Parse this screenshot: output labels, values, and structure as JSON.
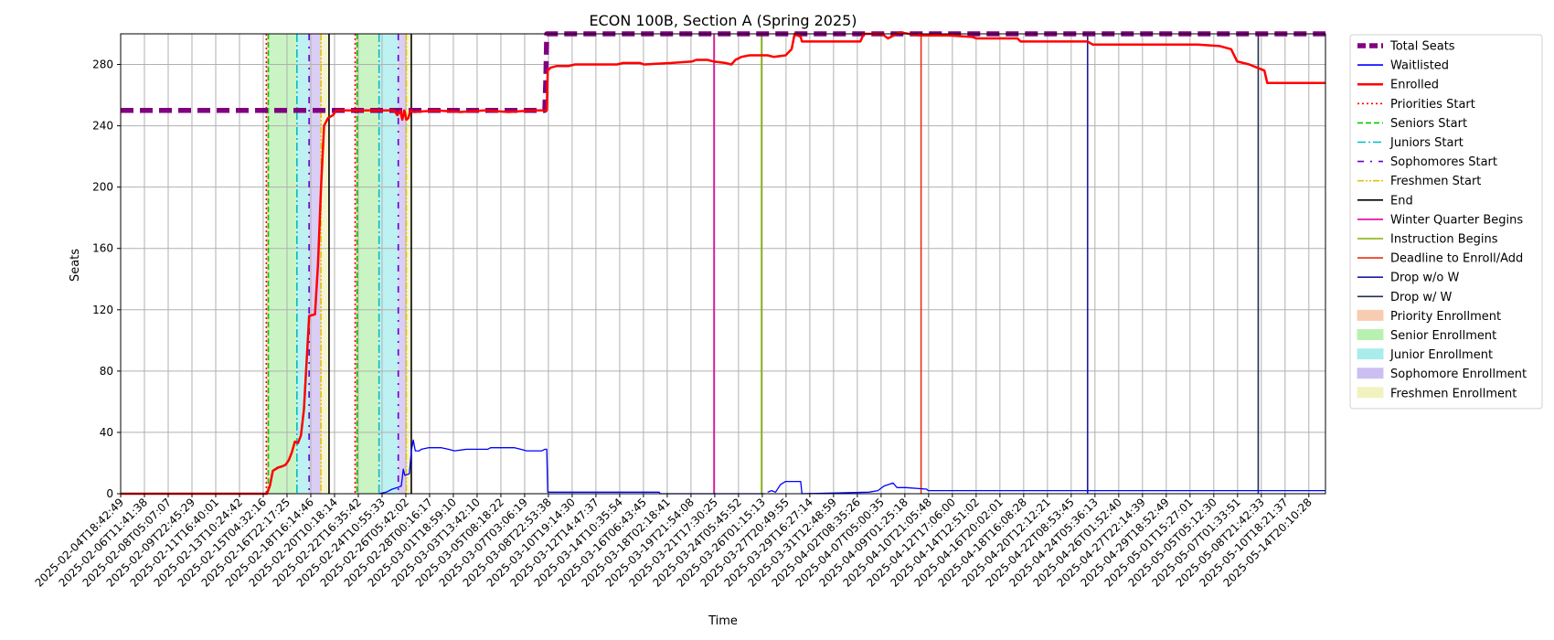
{
  "chart_data": {
    "type": "line",
    "title": "ECON 100B, Section A (Spring 2025)",
    "xlabel": "Time",
    "ylabel": "Seats",
    "ylim": [
      0,
      300
    ],
    "yticks": [
      0,
      40,
      80,
      120,
      160,
      200,
      240,
      280
    ],
    "grid": true,
    "legend_position": "outside-right",
    "x_range": [
      "2025-02-04T18:42:49",
      "2025-05-15T20:00:00"
    ],
    "x_tick_labels": [
      "2025-02-04T18:42:49",
      "2025-02-06T11:41:38",
      "2025-02-08T05:07:07",
      "2025-02-09T22:45:29",
      "2025-02-11T16:40:01",
      "2025-02-13T10:24:42",
      "2025-02-15T04:32:16",
      "2025-02-16T22:17:25",
      "2025-02-18T16:14:46",
      "2025-02-20T10:18:14",
      "2025-02-22T16:35:42",
      "2025-02-24T10:55:33",
      "2025-02-26T05:42:02",
      "2025-02-28T00:16:17",
      "2025-03-01T18:59:10",
      "2025-03-03T13:42:10",
      "2025-03-05T08:18:22",
      "2025-03-07T03:06:19",
      "2025-03-08T22:53:38",
      "2025-03-10T19:14:30",
      "2025-03-12T14:47:37",
      "2025-03-14T10:35:54",
      "2025-03-16T06:43:45",
      "2025-03-18T02:18:41",
      "2025-03-19T21:54:08",
      "2025-03-21T17:30:25",
      "2025-03-24T05:45:52",
      "2025-03-26T01:15:13",
      "2025-03-27T20:49:55",
      "2025-03-29T16:27:14",
      "2025-03-31T12:48:59",
      "2025-04-02T08:35:26",
      "2025-04-07T05:00:35",
      "2025-04-09T01:25:18",
      "2025-04-10T21:05:48",
      "2025-04-12T17:06:00",
      "2025-04-14T12:51:02",
      "2025-04-16T20:02:01",
      "2025-04-18T16:08:28",
      "2025-04-20T12:12:21",
      "2025-04-22T08:53:45",
      "2025-04-24T05:36:13",
      "2025-04-26T01:52:40",
      "2025-04-27T22:14:39",
      "2025-04-29T18:52:49",
      "2025-05-01T15:27:01",
      "2025-05-05T05:12:30",
      "2025-05-07T01:33:51",
      "2025-05-08T21:42:33",
      "2025-05-10T18:21:37",
      "2025-05-14T20:10:28"
    ],
    "series": [
      {
        "name": "Total Seats",
        "color": "#800080",
        "style": "dashed-thick",
        "points": [
          [
            "2025-02-04T18:42:49",
            250
          ],
          [
            "2025-03-12T00:00:00",
            250
          ],
          [
            "2025-03-12T02:00:00",
            270
          ],
          [
            "2025-03-12T04:00:00",
            300
          ],
          [
            "2025-05-15T20:00:00",
            300
          ]
        ]
      },
      {
        "name": "Waitlisted",
        "color": "#0000ff",
        "style": "solid",
        "segments": [
          [
            [
              "2025-02-04T18:42:49",
              0
            ],
            [
              "2025-02-16T12:00:00",
              0
            ]
          ],
          [
            [
              "2025-02-26T05:42:02",
              0
            ],
            [
              "2025-02-26T20:00:00",
              1
            ],
            [
              "2025-02-27T08:00:00",
              3
            ],
            [
              "2025-02-27T18:00:00",
              4
            ],
            [
              "2025-02-28T02:00:00",
              5
            ],
            [
              "2025-02-28T06:00:00",
              16
            ],
            [
              "2025-02-28T09:00:00",
              12
            ],
            [
              "2025-02-28T18:00:00",
              13
            ],
            [
              "2025-02-28T22:00:00",
              28
            ],
            [
              "2025-03-01T02:00:00",
              35
            ],
            [
              "2025-03-01T06:00:00",
              28
            ],
            [
              "2025-03-01T14:00:00",
              28
            ],
            [
              "2025-03-01T18:00:00",
              29
            ],
            [
              "2025-03-02T08:00:00",
              30
            ],
            [
              "2025-03-03T10:00:00",
              30
            ],
            [
              "2025-03-04T00:00:00",
              29
            ],
            [
              "2025-03-04T12:00:00",
              28
            ],
            [
              "2025-03-05T12:00:00",
              29
            ],
            [
              "2025-03-07T06:00:00",
              29
            ],
            [
              "2025-03-07T12:00:00",
              30
            ],
            [
              "2025-03-09T12:00:00",
              30
            ],
            [
              "2025-03-10T00:00:00",
              29
            ],
            [
              "2025-03-10T12:00:00",
              28
            ],
            [
              "2025-03-11T18:00:00",
              28
            ],
            [
              "2025-03-12T00:00:00",
              29
            ],
            [
              "2025-03-12T04:00:00",
              29
            ],
            [
              "2025-03-12T06:00:00",
              1
            ],
            [
              "2025-03-21T12:00:00",
              1
            ],
            [
              "2025-03-21T14:00:00",
              0
            ],
            [
              "2025-03-30T06:00:00",
              0
            ]
          ],
          [
            [
              "2025-03-30T12:00:00",
              1
            ],
            [
              "2025-03-30T20:00:00",
              2
            ],
            [
              "2025-03-31T04:00:00",
              1
            ],
            [
              "2025-03-31T14:00:00",
              6
            ],
            [
              "2025-04-01T00:00:00",
              8
            ],
            [
              "2025-04-02T06:00:00",
              8
            ],
            [
              "2025-04-02T08:35:26",
              0
            ],
            [
              "2025-04-07T22:00:00",
              1
            ],
            [
              "2025-04-08T16:00:00",
              2
            ],
            [
              "2025-04-09T04:00:00",
              5
            ],
            [
              "2025-04-09T22:00:00",
              7
            ],
            [
              "2025-04-10T06:00:00",
              4
            ],
            [
              "2025-04-11T00:00:00",
              4
            ],
            [
              "2025-04-12T17:06:00",
              3
            ],
            [
              "2025-04-12T20:00:00",
              2
            ],
            [
              "2025-05-15T20:00:00",
              2
            ]
          ]
        ]
      },
      {
        "name": "Enrolled",
        "color": "#ff0000",
        "style": "solid-thick",
        "points": [
          [
            "2025-02-04T18:42:49",
            0
          ],
          [
            "2025-02-16T22:00:00",
            0
          ],
          [
            "2025-02-17T04:00:00",
            5
          ],
          [
            "2025-02-17T10:00:00",
            15
          ],
          [
            "2025-02-17T20:00:00",
            17
          ],
          [
            "2025-02-18T06:00:00",
            18
          ],
          [
            "2025-02-18T12:00:00",
            19
          ],
          [
            "2025-02-18T18:00:00",
            22
          ],
          [
            "2025-02-19T00:00:00",
            27
          ],
          [
            "2025-02-19T06:00:00",
            34
          ],
          [
            "2025-02-19T12:00:00",
            33
          ],
          [
            "2025-02-19T18:00:00",
            38
          ],
          [
            "2025-02-20T00:00:00",
            55
          ],
          [
            "2025-02-20T06:00:00",
            90
          ],
          [
            "2025-02-20T10:18:14",
            116
          ],
          [
            "2025-02-20T22:00:00",
            117
          ],
          [
            "2025-02-21T04:00:00",
            150
          ],
          [
            "2025-02-21T10:00:00",
            200
          ],
          [
            "2025-02-21T16:00:00",
            240
          ],
          [
            "2025-02-22T00:00:00",
            245
          ],
          [
            "2025-02-22T10:00:00",
            247
          ],
          [
            "2025-02-22T16:35:42",
            250
          ],
          [
            "2025-02-27T12:00:00",
            250
          ],
          [
            "2025-02-27T18:00:00",
            247
          ],
          [
            "2025-02-28T00:00:00",
            250
          ],
          [
            "2025-02-28T04:00:00",
            244
          ],
          [
            "2025-02-28T08:00:00",
            250
          ],
          [
            "2025-02-28T12:00:00",
            244
          ],
          [
            "2025-02-28T16:00:00",
            245
          ],
          [
            "2025-02-28T20:00:00",
            250
          ],
          [
            "2025-03-01T04:00:00",
            249
          ],
          [
            "2025-03-03T00:00:00",
            250
          ],
          [
            "2025-03-05T00:00:00",
            249
          ],
          [
            "2025-03-07T00:00:00",
            250
          ],
          [
            "2025-03-09T00:00:00",
            249
          ],
          [
            "2025-03-11T00:00:00",
            250
          ],
          [
            "2025-03-12T04:00:00",
            250
          ],
          [
            "2025-03-12T06:00:00",
            276
          ],
          [
            "2025-03-12T12:00:00",
            278
          ],
          [
            "2025-03-13T00:00:00",
            279
          ],
          [
            "2025-03-14T00:00:00",
            279
          ],
          [
            "2025-03-14T12:00:00",
            280
          ],
          [
            "2025-03-18T00:00:00",
            280
          ],
          [
            "2025-03-18T12:00:00",
            281
          ],
          [
            "2025-03-19T21:54:08",
            281
          ],
          [
            "2025-03-20T06:00:00",
            280
          ],
          [
            "2025-03-22T12:00:00",
            281
          ],
          [
            "2025-03-24T05:45:52",
            282
          ],
          [
            "2025-03-24T14:00:00",
            283
          ],
          [
            "2025-03-25T12:00:00",
            283
          ],
          [
            "2025-03-26T00:00:00",
            282
          ],
          [
            "2025-03-27T00:00:00",
            281
          ],
          [
            "2025-03-27T12:00:00",
            280
          ],
          [
            "2025-03-27T20:00:00",
            283
          ],
          [
            "2025-03-28T08:00:00",
            285
          ],
          [
            "2025-03-29T00:00:00",
            286
          ],
          [
            "2025-03-30T12:00:00",
            286
          ],
          [
            "2025-03-31T00:00:00",
            285
          ],
          [
            "2025-04-01T00:00:00",
            286
          ],
          [
            "2025-04-01T12:00:00",
            290
          ],
          [
            "2025-04-01T18:00:00",
            300
          ],
          [
            "2025-04-02T06:00:00",
            298
          ],
          [
            "2025-04-02T08:35:26",
            295
          ],
          [
            "2025-04-07T05:00:35",
            295
          ],
          [
            "2025-04-07T12:00:00",
            300
          ],
          [
            "2025-04-09T00:00:00",
            300
          ],
          [
            "2025-04-09T12:00:00",
            297
          ],
          [
            "2025-04-10T12:00:00",
            301
          ],
          [
            "2025-04-12T00:00:00",
            299
          ],
          [
            "2025-04-14T12:51:02",
            299
          ],
          [
            "2025-04-16T12:00:00",
            298
          ],
          [
            "2025-04-16T20:02:01",
            297
          ],
          [
            "2025-04-20T06:00:00",
            297
          ],
          [
            "2025-04-20T12:12:21",
            295
          ],
          [
            "2025-04-26T01:52:40",
            295
          ],
          [
            "2025-04-26T12:00:00",
            293
          ],
          [
            "2025-05-05T05:12:30",
            293
          ],
          [
            "2025-05-07T01:33:51",
            292
          ],
          [
            "2025-05-08T00:00:00",
            290
          ],
          [
            "2025-05-08T12:00:00",
            282
          ],
          [
            "2025-05-09T12:00:00",
            280
          ],
          [
            "2025-05-10T18:21:37",
            276
          ],
          [
            "2025-05-11T00:00:00",
            268
          ],
          [
            "2025-05-15T20:00:00",
            268
          ]
        ]
      }
    ],
    "vertical_markers": [
      {
        "name": "Priorities Start",
        "color": "#ff0000",
        "style": "dotted",
        "x": [
          "2025-02-16T21:00:00",
          "2025-02-24T06:00:00"
        ]
      },
      {
        "name": "Seniors Start",
        "color": "#00cc00",
        "style": "dashed",
        "x": [
          "2025-02-17T01:00:00",
          "2025-02-24T10:00:00"
        ]
      },
      {
        "name": "Juniors Start",
        "color": "#00bfbf",
        "style": "dashdot",
        "x": [
          "2025-02-19T10:00:00",
          "2025-02-26T05:42:02"
        ]
      },
      {
        "name": "Sophomores Start",
        "color": "#6600cc",
        "style": "dashdot-loose",
        "x": [
          "2025-02-20T10:18:14",
          "2025-02-27T20:00:00"
        ]
      },
      {
        "name": "Freshmen Start",
        "color": "#e6c200",
        "style": "dashdotdot",
        "x": [
          "2025-02-21T10:00:00",
          "2025-02-28T12:00:00"
        ]
      },
      {
        "name": "End",
        "color": "#000000",
        "style": "solid",
        "x": [
          "2025-02-22T02:00:00",
          "2025-02-28T22:00:00"
        ]
      },
      {
        "name": "Winter Quarter Begins",
        "color": "#e600a0",
        "style": "solid",
        "x": [
          "2025-03-26T01:15:13"
        ]
      },
      {
        "name": "Instruction Begins",
        "color": "#80b000",
        "style": "solid",
        "x": [
          "2025-03-30T00:00:00"
        ]
      },
      {
        "name": "Deadline to Enroll/Add",
        "color": "#e83010",
        "style": "solid",
        "x": [
          "2025-04-12T06:00:00"
        ]
      },
      {
        "name": "Drop w/o W",
        "color": "#1a1aa0",
        "style": "solid",
        "x": [
          "2025-04-26T01:52:40"
        ]
      },
      {
        "name": "Drop w/ W",
        "color": "#1f2f4f",
        "style": "solid",
        "x": [
          "2025-05-10T06:00:00"
        ]
      }
    ],
    "shaded_regions": [
      {
        "name": "Priority Enrollment",
        "color": "#f7ccb0",
        "ranges": [
          [
            "2025-02-16T21:00:00",
            "2025-02-17T01:00:00"
          ],
          [
            "2025-02-24T06:00:00",
            "2025-02-24T10:00:00"
          ]
        ]
      },
      {
        "name": "Senior Enrollment",
        "color": "#b8f0b0",
        "ranges": [
          [
            "2025-02-17T01:00:00",
            "2025-02-19T10:00:00"
          ],
          [
            "2025-02-24T10:00:00",
            "2025-02-26T05:42:02"
          ]
        ]
      },
      {
        "name": "Junior Enrollment",
        "color": "#a8ecec",
        "ranges": [
          [
            "2025-02-19T10:00:00",
            "2025-02-20T10:18:14"
          ],
          [
            "2025-02-26T05:42:02",
            "2025-02-27T20:00:00"
          ]
        ]
      },
      {
        "name": "Sophomore Enrollment",
        "color": "#cdbef2",
        "ranges": [
          [
            "2025-02-20T10:18:14",
            "2025-02-21T10:00:00"
          ],
          [
            "2025-02-27T20:00:00",
            "2025-02-28T12:00:00"
          ]
        ]
      },
      {
        "name": "Freshmen Enrollment",
        "color": "#f2f2c0",
        "ranges": [
          [
            "2025-02-21T10:00:00",
            "2025-02-22T02:00:00"
          ],
          [
            "2025-02-28T12:00:00",
            "2025-02-28T22:00:00"
          ]
        ]
      }
    ],
    "legend": [
      {
        "label": "Total Seats",
        "kind": "line",
        "color": "#800080",
        "style": "dashed-thick"
      },
      {
        "label": "Waitlisted",
        "kind": "line",
        "color": "#0000ff",
        "style": "solid"
      },
      {
        "label": "Enrolled",
        "kind": "line",
        "color": "#ff0000",
        "style": "solid-thick"
      },
      {
        "label": "Priorities Start",
        "kind": "line",
        "color": "#ff0000",
        "style": "dotted"
      },
      {
        "label": "Seniors Start",
        "kind": "line",
        "color": "#00cc00",
        "style": "dashed"
      },
      {
        "label": "Juniors Start",
        "kind": "line",
        "color": "#00bfbf",
        "style": "dashdot"
      },
      {
        "label": "Sophomores Start",
        "kind": "line",
        "color": "#6600cc",
        "style": "dashdot-loose"
      },
      {
        "label": "Freshmen Start",
        "kind": "line",
        "color": "#e6c200",
        "style": "dashdotdot"
      },
      {
        "label": "End",
        "kind": "line",
        "color": "#000000",
        "style": "solid"
      },
      {
        "label": "Winter Quarter Begins",
        "kind": "line",
        "color": "#e600a0",
        "style": "solid"
      },
      {
        "label": "Instruction Begins",
        "kind": "line",
        "color": "#80b000",
        "style": "solid"
      },
      {
        "label": "Deadline to Enroll/Add",
        "kind": "line",
        "color": "#e83010",
        "style": "solid"
      },
      {
        "label": "Drop w/o W",
        "kind": "line",
        "color": "#1a1aa0",
        "style": "solid"
      },
      {
        "label": "Drop w/ W",
        "kind": "line",
        "color": "#1f2f4f",
        "style": "solid"
      },
      {
        "label": "Priority Enrollment",
        "kind": "patch",
        "color": "#f7ccb0"
      },
      {
        "label": "Senior Enrollment",
        "kind": "patch",
        "color": "#b8f0b0"
      },
      {
        "label": "Junior Enrollment",
        "kind": "patch",
        "color": "#a8ecec"
      },
      {
        "label": "Sophomore Enrollment",
        "kind": "patch",
        "color": "#cdbef2"
      },
      {
        "label": "Freshmen Enrollment",
        "kind": "patch",
        "color": "#f2f2c0"
      }
    ]
  }
}
